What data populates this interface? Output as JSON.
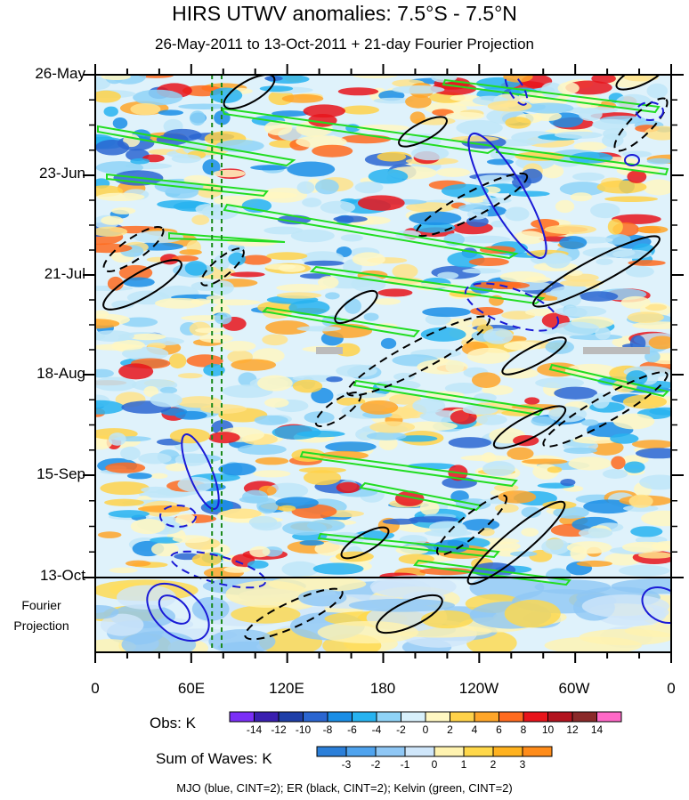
{
  "chart_data": {
    "type": "heatmap",
    "title": "HIRS UTWV anomalies: 7.5°S - 7.5°N",
    "subtitle": "26-May-2011 to 13-Oct-2011 + 21-day Fourier Projection",
    "y_ticks": [
      "26-May",
      "23-Jun",
      "21-Jul",
      "18-Aug",
      "15-Sep",
      "13-Oct"
    ],
    "projection_label": [
      "Fourier",
      "Projection"
    ],
    "x_ticks": [
      "0",
      "60E",
      "120E",
      "180",
      "120W",
      "60W",
      "0"
    ],
    "x_range_deg": [
      0,
      360
    ],
    "obs_colorbar": {
      "label": "Obs: K",
      "ticks": [
        "-14",
        "-12",
        "-10",
        "-8",
        "-6",
        "-4",
        "-2",
        "0",
        "2",
        "4",
        "6",
        "8",
        "10",
        "12",
        "14"
      ],
      "colors": [
        "#7b2ff7",
        "#3a1fb0",
        "#1f3fa8",
        "#2b66d1",
        "#1a8ee6",
        "#27b3f0",
        "#8fd3f7",
        "#d8f0fb",
        "#fff7c2",
        "#ffd24a",
        "#ffa629",
        "#ff6b1f",
        "#e8141b",
        "#b3141f",
        "#8b2a2a",
        "#ff69c7"
      ]
    },
    "waves_colorbar": {
      "label": "Sum of Waves: K",
      "ticks": [
        "-3",
        "-2",
        "-1",
        "0",
        "1",
        "2",
        "3"
      ],
      "colors": [
        "#2b7fd9",
        "#4fa3ee",
        "#8fc7f5",
        "#cfe6fa",
        "#fff3b0",
        "#ffd84a",
        "#ffb21f",
        "#ff8c1a"
      ]
    },
    "legend": "MJO (blue, CINT=2); ER (black, CINT=2); Kelvin (green, CINT=2)",
    "vertical_markers_deg": [
      73,
      79
    ]
  }
}
